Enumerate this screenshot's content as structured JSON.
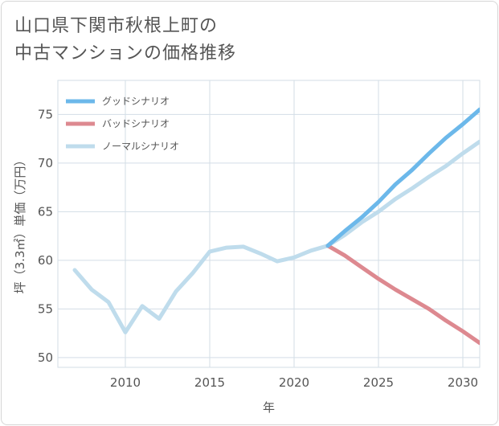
{
  "title_line1": "山口県下関市秋根上町の",
  "title_line2": "中古マンションの価格推移",
  "chart_data": {
    "type": "line",
    "title": "山口県下関市秋根上町の中古マンションの価格推移",
    "xlabel": "年",
    "ylabel": "坪（3.3㎡）単価（万円）",
    "xlim": [
      2006,
      2031
    ],
    "ylim": [
      49,
      78.5
    ],
    "xticks": [
      2010,
      2015,
      2020,
      2025,
      2030
    ],
    "yticks": [
      50,
      55,
      60,
      65,
      70,
      75
    ],
    "legend_position": "top-left",
    "series": [
      {
        "name": "グッドシナリオ",
        "color": "#6cb8ea",
        "x": [
          2022,
          2023,
          2024,
          2025,
          2026,
          2027,
          2028,
          2029,
          2030,
          2031
        ],
        "values": [
          61.5,
          63.0,
          64.4,
          66.0,
          67.8,
          69.3,
          71.0,
          72.6,
          74.0,
          75.5
        ]
      },
      {
        "name": "バッドシナリオ",
        "color": "#dd8990",
        "x": [
          2022,
          2023,
          2024,
          2025,
          2026,
          2027,
          2028,
          2029,
          2030,
          2031
        ],
        "values": [
          61.5,
          60.5,
          59.3,
          58.1,
          57.0,
          56.0,
          55.0,
          53.8,
          52.7,
          51.5
        ]
      },
      {
        "name": "ノーマルシナリオ",
        "color": "#bfdcec",
        "x": [
          2007,
          2008,
          2009,
          2010,
          2011,
          2012,
          2013,
          2014,
          2015,
          2016,
          2017,
          2018,
          2019,
          2020,
          2021,
          2022,
          2023,
          2024,
          2025,
          2026,
          2027,
          2028,
          2029,
          2030,
          2031
        ],
        "values": [
          59.0,
          57.0,
          55.7,
          52.6,
          55.3,
          54.0,
          56.8,
          58.7,
          60.9,
          61.3,
          61.4,
          60.7,
          59.9,
          60.3,
          61.0,
          61.5,
          62.6,
          63.9,
          65.0,
          66.3,
          67.4,
          68.6,
          69.7,
          71.0,
          72.2
        ]
      }
    ]
  }
}
